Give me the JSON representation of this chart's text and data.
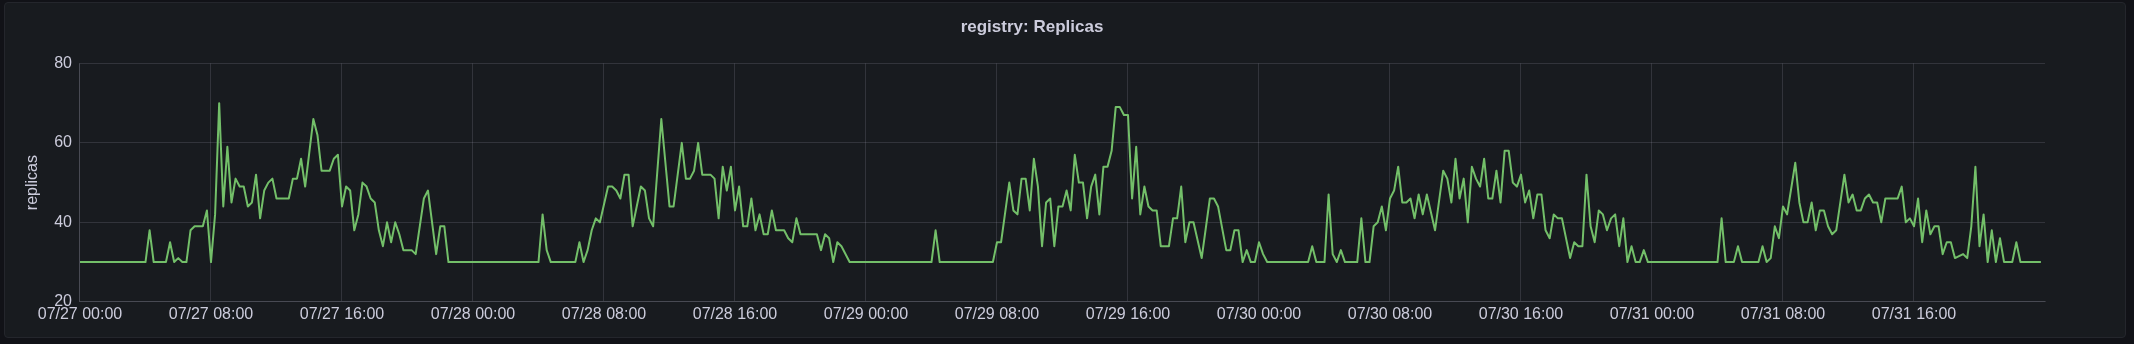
{
  "chart_data": {
    "type": "line",
    "title": "registry: Replicas",
    "ylabel": "replicas",
    "grid": true,
    "legend": false,
    "marker": "none",
    "line_style": "solid",
    "xlim": [
      "--07-27T00:00",
      "--08-01T00:00"
    ],
    "xticks": [
      {
        "value": "--07-27T00:00",
        "label": "07/27 00:00"
      },
      {
        "value": "--07-27T08:00",
        "label": "07/27 08:00"
      },
      {
        "value": "--07-27T16:00",
        "label": "07/27 16:00"
      },
      {
        "value": "--07-28T00:00",
        "label": "07/28 00:00"
      },
      {
        "value": "--07-28T08:00",
        "label": "07/28 08:00"
      },
      {
        "value": "--07-28T16:00",
        "label": "07/28 16:00"
      },
      {
        "value": "--07-29T00:00",
        "label": "07/29 00:00"
      },
      {
        "value": "--07-29T08:00",
        "label": "07/29 08:00"
      },
      {
        "value": "--07-29T16:00",
        "label": "07/29 16:00"
      },
      {
        "value": "--07-30T00:00",
        "label": "07/30 00:00"
      },
      {
        "value": "--07-30T08:00",
        "label": "07/30 08:00"
      },
      {
        "value": "--07-30T16:00",
        "label": "07/30 16:00"
      },
      {
        "value": "--07-31T00:00",
        "label": "07/31 00:00"
      },
      {
        "value": "--07-31T08:00",
        "label": "07/31 08:00"
      },
      {
        "value": "--07-31T16:00",
        "label": "07/31 16:00"
      }
    ],
    "ylim": [
      20,
      80
    ],
    "yticks": [
      20,
      40,
      60,
      80
    ],
    "x": [
      "--07-27T00:00",
      "--07-27T04:00",
      "--07-27T04:15",
      "--07-27T04:30",
      "--07-27T05:15",
      "--07-27T05:30",
      "--07-27T05:45",
      "--07-27T06:00",
      "--07-27T06:15",
      "--07-27T06:30",
      "--07-27T06:45",
      "--07-27T07:00",
      "--07-27T07:30",
      "--07-27T07:45",
      "--07-27T08:00",
      "--07-27T08:15",
      "--07-27T08:30",
      "--07-27T08:45",
      "--07-27T09:00",
      "--07-27T09:15",
      "--07-27T09:30",
      "--07-27T09:45",
      "--07-27T10:00",
      "--07-27T10:15",
      "--07-27T10:30",
      "--07-27T10:45",
      "--07-27T11:00",
      "--07-27T11:15",
      "--07-27T11:30",
      "--07-27T11:45",
      "--07-27T12:00",
      "--07-27T12:45",
      "--07-27T13:00",
      "--07-27T13:15",
      "--07-27T13:30",
      "--07-27T13:45",
      "--07-27T14:15",
      "--07-27T14:30",
      "--07-27T14:45",
      "--07-27T15:15",
      "--07-27T15:30",
      "--07-27T15:45",
      "--07-27T16:00",
      "--07-27T16:15",
      "--07-27T16:30",
      "--07-27T16:45",
      "--07-27T17:00",
      "--07-27T17:15",
      "--07-27T17:30",
      "--07-27T17:45",
      "--07-27T18:00",
      "--07-27T18:15",
      "--07-27T18:30",
      "--07-27T18:45",
      "--07-27T19:00",
      "--07-27T19:15",
      "--07-27T19:30",
      "--07-27T19:45",
      "--07-27T20:15",
      "--07-27T20:30",
      "--07-27T21:00",
      "--07-27T21:15",
      "--07-27T21:45",
      "--07-27T22:00",
      "--07-27T22:15",
      "--07-27T22:30",
      "--07-28T04:00",
      "--07-28T04:15",
      "--07-28T04:30",
      "--07-28T04:45",
      "--07-28T06:15",
      "--07-28T06:30",
      "--07-28T06:45",
      "--07-28T07:00",
      "--07-28T07:15",
      "--07-28T07:30",
      "--07-28T07:45",
      "--07-28T08:15",
      "--07-28T08:30",
      "--07-28T08:45",
      "--07-28T09:00",
      "--07-28T09:15",
      "--07-28T09:30",
      "--07-28T09:45",
      "--07-28T10:15",
      "--07-28T10:30",
      "--07-28T10:45",
      "--07-28T11:00",
      "--07-28T11:30",
      "--07-28T12:00",
      "--07-28T12:15",
      "--07-28T12:45",
      "--07-28T13:00",
      "--07-28T13:15",
      "--07-28T13:30",
      "--07-28T13:45",
      "--07-28T14:00",
      "--07-28T14:30",
      "--07-28T14:45",
      "--07-28T15:00",
      "--07-28T15:15",
      "--07-28T15:30",
      "--07-28T15:45",
      "--07-28T16:00",
      "--07-28T16:15",
      "--07-28T16:30",
      "--07-28T16:45",
      "--07-28T17:00",
      "--07-28T17:15",
      "--07-28T17:30",
      "--07-28T17:45",
      "--07-28T18:00",
      "--07-28T18:15",
      "--07-28T18:30",
      "--07-28T19:00",
      "--07-28T19:15",
      "--07-28T19:30",
      "--07-28T19:45",
      "--07-28T20:00",
      "--07-28T21:00",
      "--07-28T21:15",
      "--07-28T21:30",
      "--07-28T21:45",
      "--07-28T22:00",
      "--07-28T22:15",
      "--07-28T22:30",
      "--07-28T23:00",
      "--07-29T04:00",
      "--07-29T04:15",
      "--07-29T04:30",
      "--07-29T07:45",
      "--07-29T08:00",
      "--07-29T08:15",
      "--07-29T08:45",
      "--07-29T09:00",
      "--07-29T09:15",
      "--07-29T09:30",
      "--07-29T09:45",
      "--07-29T10:00",
      "--07-29T10:15",
      "--07-29T10:30",
      "--07-29T10:45",
      "--07-29T11:00",
      "--07-29T11:15",
      "--07-29T11:30",
      "--07-29T11:45",
      "--07-29T12:00",
      "--07-29T12:15",
      "--07-29T12:30",
      "--07-29T12:45",
      "--07-29T13:00",
      "--07-29T13:15",
      "--07-29T13:30",
      "--07-29T13:45",
      "--07-29T14:00",
      "--07-29T14:15",
      "--07-29T14:30",
      "--07-29T14:45",
      "--07-29T15:00",
      "--07-29T15:15",
      "--07-29T15:30",
      "--07-29T15:45",
      "--07-29T16:00",
      "--07-29T16:15",
      "--07-29T16:30",
      "--07-29T16:45",
      "--07-29T17:00",
      "--07-29T17:15",
      "--07-29T17:30",
      "--07-29T17:45",
      "--07-29T18:00",
      "--07-29T18:30",
      "--07-29T18:45",
      "--07-29T19:00",
      "--07-29T19:15",
      "--07-29T19:30",
      "--07-29T19:45",
      "--07-29T20:00",
      "--07-29T20:30",
      "--07-29T21:00",
      "--07-29T21:15",
      "--07-29T21:30",
      "--07-29T22:00",
      "--07-29T22:15",
      "--07-29T22:30",
      "--07-29T22:45",
      "--07-29T23:00",
      "--07-29T23:15",
      "--07-29T23:30",
      "--07-29T23:45",
      "--07-30T00:00",
      "--07-30T00:15",
      "--07-30T00:30",
      "--07-30T03:00",
      "--07-30T03:15",
      "--07-30T03:30",
      "--07-30T04:00",
      "--07-30T04:15",
      "--07-30T04:30",
      "--07-30T04:45",
      "--07-30T05:00",
      "--07-30T05:15",
      "--07-30T06:00",
      "--07-30T06:15",
      "--07-30T06:30",
      "--07-30T06:45",
      "--07-30T07:00",
      "--07-30T07:15",
      "--07-30T07:30",
      "--07-30T07:45",
      "--07-30T08:00",
      "--07-30T08:15",
      "--07-30T08:30",
      "--07-30T08:45",
      "--07-30T09:00",
      "--07-30T09:15",
      "--07-30T09:30",
      "--07-30T09:45",
      "--07-30T10:00",
      "--07-30T10:15",
      "--07-30T10:45",
      "--07-30T11:15",
      "--07-30T11:30",
      "--07-30T11:45",
      "--07-30T12:00",
      "--07-30T12:15",
      "--07-30T12:30",
      "--07-30T12:45",
      "--07-30T13:00",
      "--07-30T13:15",
      "--07-30T13:30",
      "--07-30T13:45",
      "--07-30T14:00",
      "--07-30T14:15",
      "--07-30T14:30",
      "--07-30T14:45",
      "--07-30T15:00",
      "--07-30T15:15",
      "--07-30T15:30",
      "--07-30T15:45",
      "--07-30T16:00",
      "--07-30T16:15",
      "--07-30T16:30",
      "--07-30T16:45",
      "--07-30T17:00",
      "--07-30T17:15",
      "--07-30T17:30",
      "--07-30T17:45",
      "--07-30T18:00",
      "--07-30T18:15",
      "--07-30T18:30",
      "--07-30T19:00",
      "--07-30T19:15",
      "--07-30T19:30",
      "--07-30T19:45",
      "--07-30T20:00",
      "--07-30T20:15",
      "--07-30T20:30",
      "--07-30T20:45",
      "--07-30T21:00",
      "--07-30T21:15",
      "--07-30T21:30",
      "--07-30T21:45",
      "--07-30T22:00",
      "--07-30T22:15",
      "--07-30T22:30",
      "--07-30T22:45",
      "--07-30T23:00",
      "--07-30T23:15",
      "--07-30T23:30",
      "--07-30T23:45",
      "--07-31T04:00",
      "--07-31T04:15",
      "--07-31T04:30",
      "--07-31T05:00",
      "--07-31T05:15",
      "--07-31T05:30",
      "--07-31T06:30",
      "--07-31T06:45",
      "--07-31T07:00",
      "--07-31T07:15",
      "--07-31T07:30",
      "--07-31T07:45",
      "--07-31T08:00",
      "--07-31T08:15",
      "--07-31T08:45",
      "--07-31T09:00",
      "--07-31T09:15",
      "--07-31T09:30",
      "--07-31T09:45",
      "--07-31T10:00",
      "--07-31T10:15",
      "--07-31T10:30",
      "--07-31T10:45",
      "--07-31T11:00",
      "--07-31T11:15",
      "--07-31T11:45",
      "--07-31T12:00",
      "--07-31T12:15",
      "--07-31T12:30",
      "--07-31T12:45",
      "--07-31T13:00",
      "--07-31T13:15",
      "--07-31T13:30",
      "--07-31T13:45",
      "--07-31T14:00",
      "--07-31T14:15",
      "--07-31T15:00",
      "--07-31T15:15",
      "--07-31T15:30",
      "--07-31T15:45",
      "--07-31T16:00",
      "--07-31T16:15",
      "--07-31T16:30",
      "--07-31T16:45",
      "--07-31T17:00",
      "--07-31T17:15",
      "--07-31T17:30",
      "--07-31T17:45",
      "--07-31T18:00",
      "--07-31T18:15",
      "--07-31T18:30",
      "--07-31T19:00",
      "--07-31T19:15",
      "--07-31T19:30",
      "--07-31T19:45",
      "--07-31T20:00",
      "--07-31T20:15",
      "--07-31T20:30",
      "--07-31T20:45",
      "--07-31T21:00",
      "--07-31T21:15",
      "--07-31T21:30",
      "--07-31T22:00",
      "--07-31T22:15",
      "--07-31T22:30",
      "--07-31T23:45"
    ],
    "series": [
      {
        "color": "#73bf69",
        "values": [
          30,
          30,
          38,
          30,
          30,
          35,
          30,
          31,
          30,
          30,
          38,
          39,
          39,
          43,
          30,
          42,
          70,
          44,
          59,
          45,
          51,
          49,
          49,
          44,
          45,
          52,
          41,
          48,
          50,
          51,
          46,
          46,
          51,
          51,
          56,
          49,
          66,
          62,
          53,
          53,
          56,
          57,
          44,
          49,
          48,
          38,
          42,
          50,
          49,
          46,
          45,
          38,
          34,
          40,
          35,
          40,
          37,
          33,
          33,
          32,
          46,
          48,
          32,
          39,
          39,
          30,
          30,
          42,
          33,
          30,
          30,
          35,
          30,
          33,
          38,
          41,
          40,
          49,
          49,
          48,
          46,
          52,
          52,
          39,
          49,
          48,
          41,
          39,
          66,
          44,
          44,
          60,
          51,
          51,
          53,
          60,
          52,
          52,
          51,
          41,
          54,
          48,
          54,
          43,
          49,
          39,
          39,
          46,
          38,
          42,
          37,
          37,
          43,
          38,
          38,
          36,
          35,
          41,
          37,
          37,
          33,
          37,
          36,
          30,
          35,
          34,
          30,
          30,
          38,
          30,
          30,
          35,
          35,
          50,
          43,
          42,
          51,
          51,
          43,
          56,
          49,
          34,
          45,
          46,
          34,
          44,
          44,
          48,
          43,
          57,
          50,
          50,
          41,
          49,
          52,
          42,
          54,
          54,
          58,
          69,
          69,
          67,
          67,
          46,
          59,
          42,
          49,
          44,
          43,
          43,
          34,
          34,
          41,
          41,
          49,
          35,
          40,
          40,
          31,
          46,
          46,
          44,
          33,
          33,
          38,
          38,
          30,
          33,
          30,
          30,
          35,
          32,
          30,
          30,
          34,
          30,
          30,
          47,
          32,
          30,
          33,
          30,
          30,
          41,
          30,
          30,
          39,
          40,
          44,
          38,
          46,
          48,
          54,
          45,
          45,
          46,
          41,
          47,
          42,
          47,
          38,
          53,
          51,
          45,
          56,
          46,
          51,
          40,
          54,
          51,
          49,
          56,
          46,
          46,
          53,
          45,
          58,
          58,
          50,
          49,
          52,
          45,
          48,
          41,
          47,
          47,
          38,
          36,
          42,
          41,
          41,
          31,
          35,
          34,
          34,
          52,
          39,
          35,
          43,
          42,
          38,
          41,
          42,
          34,
          41,
          30,
          34,
          30,
          30,
          33,
          30,
          30,
          41,
          30,
          30,
          34,
          30,
          30,
          34,
          30,
          31,
          39,
          36,
          44,
          42,
          55,
          45,
          40,
          40,
          45,
          38,
          43,
          43,
          39,
          37,
          38,
          52,
          45,
          47,
          43,
          43,
          46,
          47,
          45,
          45,
          40,
          46,
          46,
          49,
          40,
          41,
          39,
          46,
          35,
          43,
          37,
          39,
          39,
          32,
          35,
          35,
          31,
          32,
          31,
          39,
          54,
          34,
          42,
          30,
          38,
          30,
          36,
          30,
          30,
          35,
          30,
          30
        ]
      }
    ]
  }
}
